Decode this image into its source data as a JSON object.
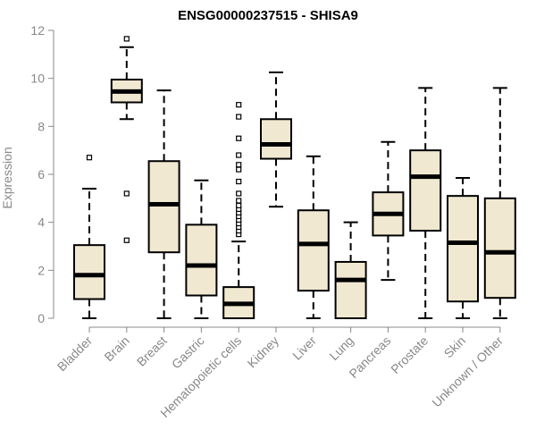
{
  "chart_data": {
    "type": "box",
    "title": "ENSG00000237515 - SHISA9",
    "xlabel": "",
    "ylabel": "Expression",
    "ylim": [
      0,
      12
    ],
    "yticks": [
      0,
      2,
      4,
      6,
      8,
      10,
      12
    ],
    "grid": false,
    "legend": "none",
    "box_fill": "#f0e8d0",
    "box_stroke": "#000000",
    "axis_color": "#888888",
    "categories": [
      "Bladder",
      "Brain",
      "Breast",
      "Gastric",
      "Hematopoietic cells",
      "Kidney",
      "Liver",
      "Lung",
      "Pancreas",
      "Prostate",
      "Skin",
      "Unknown / Other"
    ],
    "boxes": [
      {
        "category": "Bladder",
        "whisker_low": 0.0,
        "q1": 0.8,
        "median": 1.8,
        "q3": 3.05,
        "whisker_high": 5.4,
        "outliers": [
          6.7
        ]
      },
      {
        "category": "Brain",
        "whisker_low": 8.3,
        "q1": 9.0,
        "median": 9.45,
        "q3": 9.95,
        "whisker_high": 11.3,
        "outliers": [
          11.65,
          5.2,
          3.25
        ]
      },
      {
        "category": "Breast",
        "whisker_low": 0.0,
        "q1": 2.75,
        "median": 4.75,
        "q3": 6.55,
        "whisker_high": 9.5,
        "outliers": []
      },
      {
        "category": "Gastric",
        "whisker_low": 0.0,
        "q1": 0.95,
        "median": 2.2,
        "q3": 3.9,
        "whisker_high": 5.75,
        "outliers": []
      },
      {
        "category": "Hematopoietic cells",
        "whisker_low": 0.0,
        "q1": 0.0,
        "median": 0.6,
        "q3": 1.3,
        "whisker_high": 3.2,
        "outliers": [
          3.5,
          3.65,
          3.8,
          3.95,
          4.1,
          4.25,
          4.4,
          4.55,
          4.7,
          4.9,
          5.2,
          5.7,
          6.2,
          6.4,
          6.8,
          7.5,
          8.4,
          8.9
        ]
      },
      {
        "category": "Kidney",
        "whisker_low": 4.65,
        "q1": 6.65,
        "median": 7.25,
        "q3": 8.3,
        "whisker_high": 10.25,
        "outliers": []
      },
      {
        "category": "Liver",
        "whisker_low": 0.0,
        "q1": 1.15,
        "median": 3.1,
        "q3": 4.5,
        "whisker_high": 6.75,
        "outliers": []
      },
      {
        "category": "Lung",
        "whisker_low": 0.0,
        "q1": 0.0,
        "median": 1.6,
        "q3": 2.35,
        "whisker_high": 4.0,
        "outliers": []
      },
      {
        "category": "Pancreas",
        "whisker_low": 1.6,
        "q1": 3.45,
        "median": 4.35,
        "q3": 5.25,
        "whisker_high": 7.35,
        "outliers": []
      },
      {
        "category": "Prostate",
        "whisker_low": 0.0,
        "q1": 3.65,
        "median": 5.9,
        "q3": 7.0,
        "whisker_high": 9.6,
        "outliers": []
      },
      {
        "category": "Skin",
        "whisker_low": 0.0,
        "q1": 0.7,
        "median": 3.15,
        "q3": 5.1,
        "whisker_high": 5.85,
        "outliers": []
      },
      {
        "category": "Unknown / Other",
        "whisker_low": 0.0,
        "q1": 0.85,
        "median": 2.75,
        "q3": 5.0,
        "whisker_high": 9.6,
        "outliers": []
      }
    ]
  }
}
